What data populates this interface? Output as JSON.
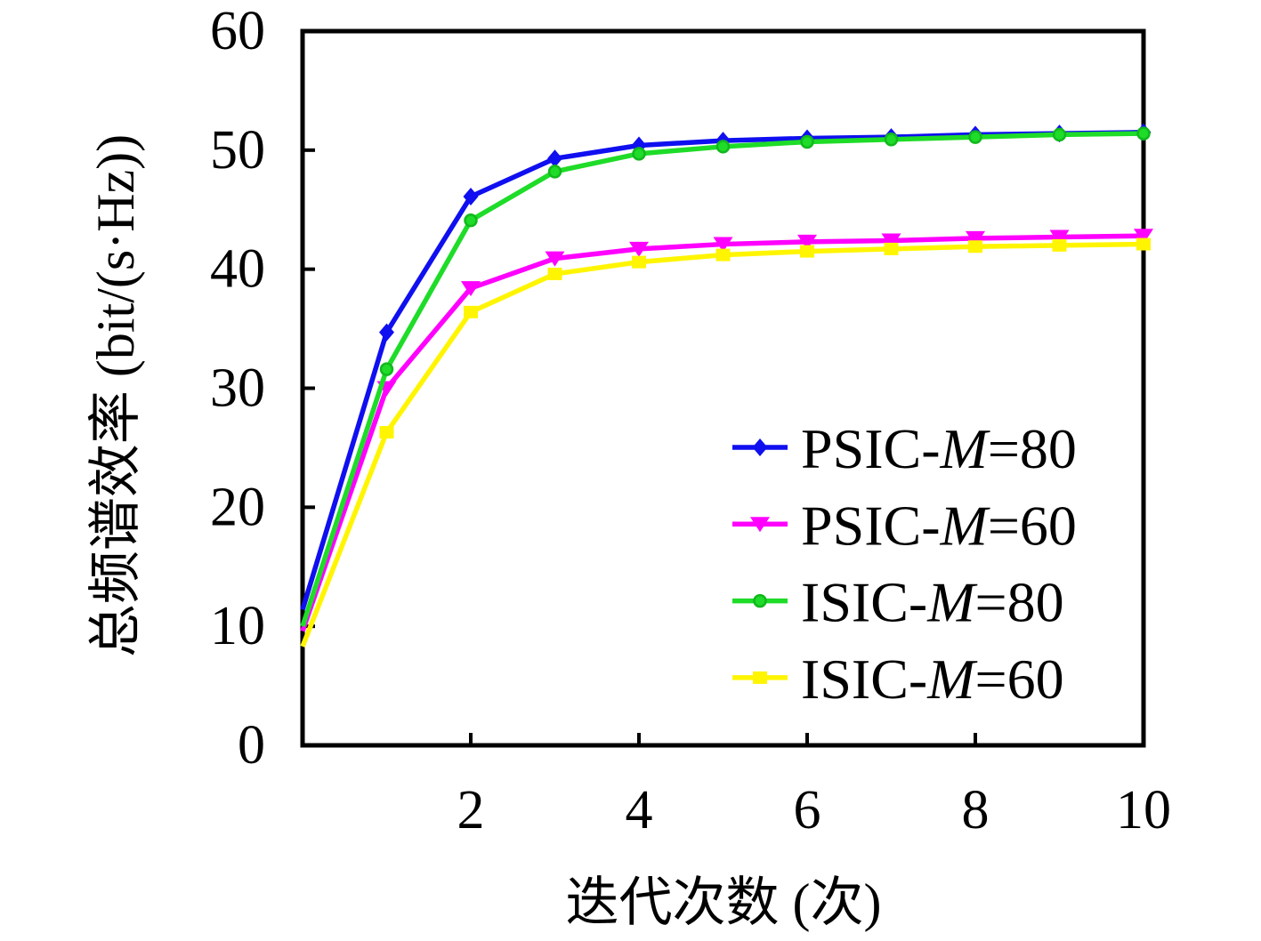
{
  "figure": {
    "background": "#ffffff",
    "text_color": "#000000"
  },
  "chart_data": {
    "type": "line",
    "title": "",
    "xlabel": "迭代次数 (次)",
    "ylabel": "总频谱效率 (bit/(s·Hz))",
    "xlim": [
      0,
      10
    ],
    "ylim": [
      0,
      60
    ],
    "x_ticks": [
      2,
      4,
      6,
      8,
      10
    ],
    "y_ticks": [
      0,
      10,
      20,
      30,
      40,
      50,
      60
    ],
    "grid": false,
    "legend_position": "inside-right",
    "x": [
      0,
      1,
      2,
      3,
      4,
      5,
      6,
      7,
      8,
      9,
      10
    ],
    "series": [
      {
        "name": "PSIC-M=80",
        "label_parts": {
          "prefix": "PSIC-",
          "var": "M",
          "suffix": "=80"
        },
        "color": "#0F0FF0",
        "edge": "#0F0FF0",
        "marker": "diamond",
        "values": [
          11.4,
          34.7,
          46.1,
          49.3,
          50.4,
          50.8,
          51.0,
          51.1,
          51.3,
          51.4,
          51.5
        ]
      },
      {
        "name": "PSIC-M=60",
        "label_parts": {
          "prefix": "PSIC-",
          "var": "M",
          "suffix": "=60"
        },
        "color": "#FF00FF",
        "edge": "#FF00FF",
        "marker": "triangle-down",
        "values": [
          9.6,
          30.0,
          38.4,
          40.9,
          41.7,
          42.1,
          42.3,
          42.4,
          42.6,
          42.7,
          42.8
        ]
      },
      {
        "name": "ISIC-M=80",
        "label_parts": {
          "prefix": "ISIC-",
          "var": "M",
          "suffix": "=80"
        },
        "color": "#1EDC28",
        "edge": "#12B81E",
        "marker": "circle",
        "values": [
          10.0,
          31.6,
          44.1,
          48.2,
          49.7,
          50.3,
          50.7,
          50.9,
          51.1,
          51.3,
          51.4
        ]
      },
      {
        "name": "ISIC-M=60",
        "label_parts": {
          "prefix": "ISIC-",
          "var": "M",
          "suffix": "=60"
        },
        "color": "#FFF500",
        "edge": "#FFF500",
        "marker": "square",
        "values": [
          8.3,
          26.3,
          36.4,
          39.6,
          40.6,
          41.2,
          41.5,
          41.7,
          41.9,
          42.0,
          42.1
        ]
      }
    ]
  }
}
